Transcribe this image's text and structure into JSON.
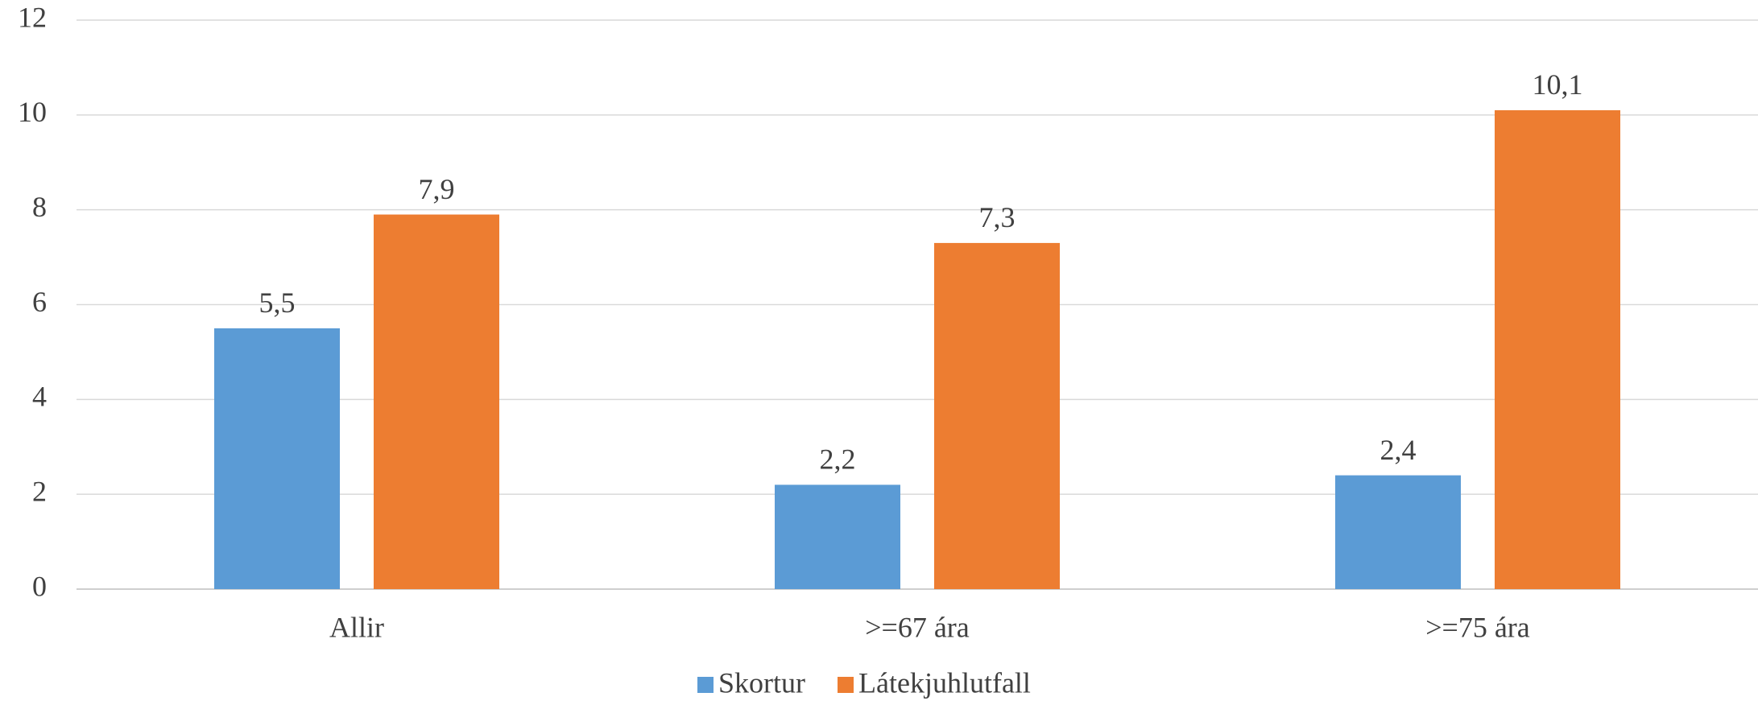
{
  "chart_data": {
    "type": "bar",
    "categories": [
      "Allir",
      ">=67 ára",
      ">=75 ára"
    ],
    "series": [
      {
        "name": "Skortur",
        "color": "#5b9bd5",
        "values": [
          5.5,
          2.2,
          2.4
        ],
        "value_labels": [
          "5,5",
          "2,2",
          "2,4"
        ]
      },
      {
        "name": "Látekjuhlutfall",
        "color": "#ed7d31",
        "values": [
          7.9,
          7.3,
          10.1
        ],
        "value_labels": [
          "7,9",
          "7,3",
          "10,1"
        ]
      }
    ],
    "ylim": [
      0,
      12
    ],
    "yticks": [
      0,
      2,
      4,
      6,
      8,
      10,
      12
    ],
    "grid": true,
    "legend": "bottom"
  }
}
